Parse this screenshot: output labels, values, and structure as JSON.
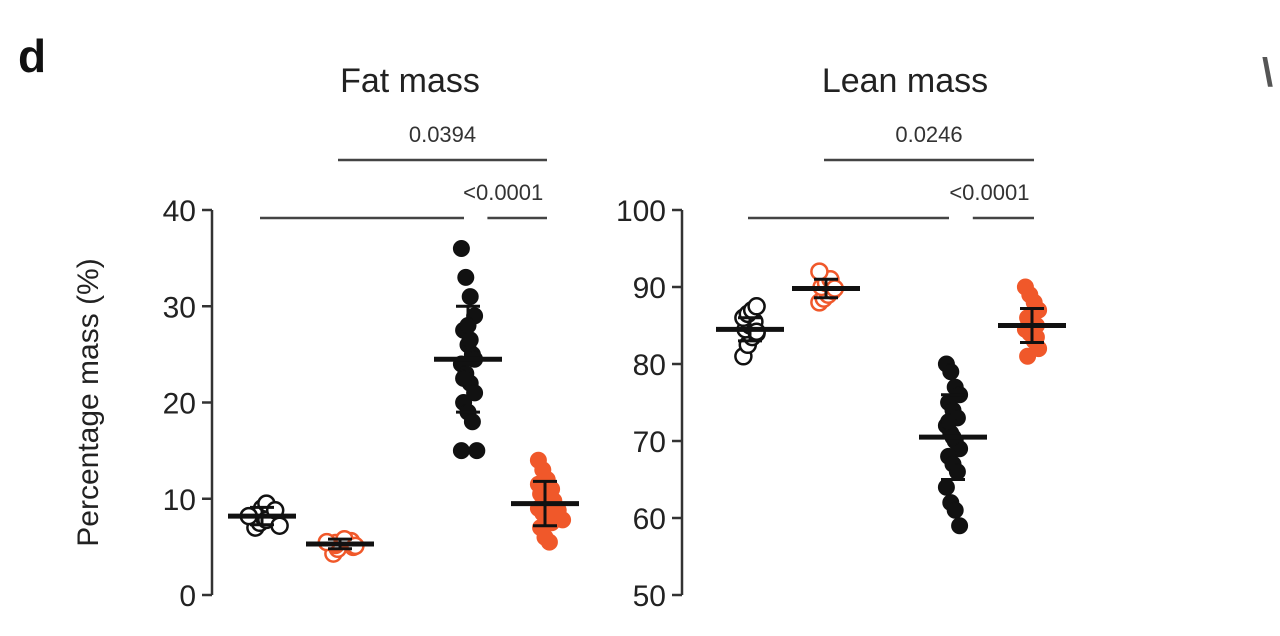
{
  "panel_letter": "d",
  "colors": {
    "black": "#111111",
    "orange": "#f0582a",
    "axis": "#333333"
  },
  "chart_data": [
    {
      "type": "scatter",
      "title": "Fat mass",
      "ylabel": "Percentage mass (%)",
      "ylim": [
        0,
        40
      ],
      "yticks": [
        0,
        10,
        20,
        30,
        40
      ],
      "yticklabels": [
        "0",
        "10",
        "20",
        "30",
        "40"
      ],
      "groups": [
        {
          "color": "black",
          "filled": false,
          "mean": 8.2,
          "sd": 0.9,
          "values": [
            7.0,
            7.5,
            8.0,
            8.3,
            8.6,
            9.0,
            9.5,
            7.8,
            8.2,
            8.8,
            7.2
          ]
        },
        {
          "color": "orange",
          "filled": false,
          "mean": 5.3,
          "sd": 0.5,
          "values": [
            4.3,
            4.8,
            5.0,
            5.2,
            5.4,
            5.6,
            5.8,
            5.1,
            5.5
          ]
        },
        {
          "color": "black",
          "filled": true,
          "mean": 24.5,
          "sd": 5.5,
          "values": [
            36.0,
            33.0,
            31.0,
            29.0,
            27.5,
            26.0,
            25.0,
            24.0,
            23.0,
            22.0,
            21.0,
            20.0,
            19.0,
            18.0,
            15.0,
            15.0,
            26.5,
            24.5,
            22.5,
            28.0
          ]
        },
        {
          "color": "orange",
          "filled": true,
          "mean": 9.5,
          "sd": 2.3,
          "values": [
            14.0,
            13.0,
            12.0,
            11.0,
            10.5,
            10.0,
            9.5,
            9.0,
            8.5,
            8.0,
            7.5,
            7.0,
            6.0,
            5.5,
            11.5,
            9.8,
            8.8,
            7.8
          ]
        }
      ],
      "comparisons": [
        {
          "label": "0.0394",
          "from": 1,
          "to": 3,
          "y": 35
        },
        {
          "label": "<0.0001",
          "from": 0,
          "to": 2,
          "y": 30,
          "right_from": 2.2,
          "right_to": 3
        }
      ]
    },
    {
      "type": "scatter",
      "title": "Lean mass",
      "ylabel": "",
      "ylim": [
        50,
        100
      ],
      "yticks": [
        50,
        60,
        70,
        80,
        90,
        100
      ],
      "yticklabels": [
        "50",
        "60",
        "70",
        "80",
        "90",
        "100"
      ],
      "groups": [
        {
          "color": "black",
          "filled": false,
          "mean": 84.5,
          "sd": 1.5,
          "values": [
            81.0,
            82.5,
            83.5,
            84.0,
            84.5,
            85.0,
            85.5,
            86.0,
            86.5,
            87.0,
            87.5,
            84.2
          ]
        },
        {
          "color": "orange",
          "filled": false,
          "mean": 89.8,
          "sd": 1.2,
          "values": [
            88.0,
            88.5,
            89.0,
            89.5,
            90.0,
            90.5,
            91.0,
            92.0,
            89.8
          ]
        },
        {
          "color": "black",
          "filled": true,
          "mean": 70.5,
          "sd": 5.5,
          "values": [
            80.0,
            79.0,
            77.0,
            76.0,
            75.0,
            74.0,
            73.0,
            72.0,
            71.0,
            70.0,
            69.0,
            68.0,
            67.0,
            66.0,
            64.0,
            62.0,
            61.0,
            59.0,
            72.5,
            70.5
          ]
        },
        {
          "color": "orange",
          "filled": true,
          "mean": 85.0,
          "sd": 2.2,
          "values": [
            90.0,
            89.0,
            88.0,
            87.0,
            86.0,
            85.5,
            85.0,
            84.5,
            84.0,
            83.0,
            82.0,
            81.0,
            86.5,
            83.5
          ]
        }
      ],
      "comparisons": [
        {
          "label": "0.0246",
          "from": 1,
          "to": 3,
          "y": 97
        },
        {
          "label": "<0.0001",
          "from": 0,
          "to": 2,
          "y": 92,
          "right_from": 2.2,
          "right_to": 3
        }
      ]
    }
  ]
}
